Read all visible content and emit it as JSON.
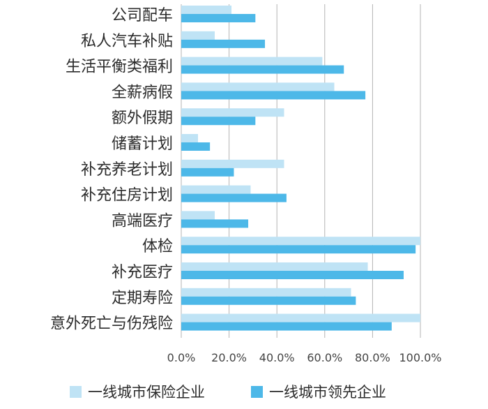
{
  "chart_data": {
    "type": "bar",
    "orientation": "horizontal",
    "categories": [
      "公司配车",
      "私人汽车补贴",
      "生活平衡类福利",
      "全薪病假",
      "额外假期",
      "储蓄计划",
      "补充养老计划",
      "补充住房计划",
      "高端医疗",
      "体检",
      "补充医疗",
      "定期寿险",
      "意外死亡与伤残险"
    ],
    "series": [
      {
        "name": "一线城市保险企业",
        "color": "#bfe3f5",
        "values": [
          21,
          14,
          59,
          64,
          43,
          7,
          43,
          29,
          14,
          100,
          78,
          71,
          100
        ]
      },
      {
        "name": "一线城市领先企业",
        "color": "#4db8e8",
        "values": [
          31,
          35,
          68,
          77,
          31,
          12,
          22,
          44,
          28,
          98,
          93,
          73,
          88
        ]
      }
    ],
    "xlim": [
      0,
      100
    ],
    "xticks": [
      "0.0%",
      "20.0%",
      "40.0%",
      "60.0%",
      "80.0%",
      "100.0%"
    ],
    "grid": true,
    "legend_position": "bottom"
  }
}
